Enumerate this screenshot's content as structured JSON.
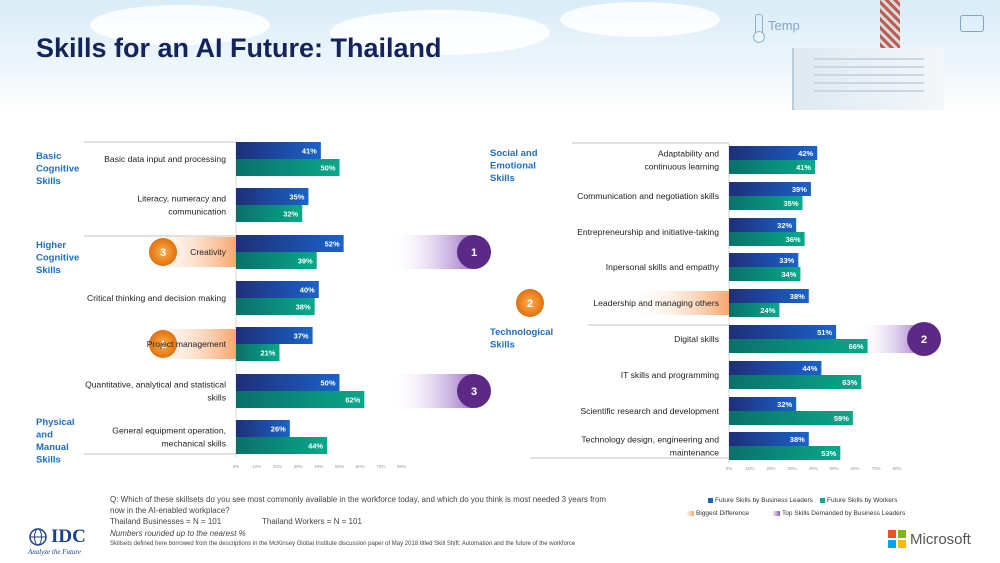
{
  "header": {
    "title": "Skills for an AI Future: Thailand",
    "temp_label": "Temp"
  },
  "colors": {
    "leaders": "#1a63c9",
    "workers": "#0aa88a",
    "biggest_difference": "#f7a66c",
    "top_demanded": "#5c2a86",
    "category_text": "#1e6ec0"
  },
  "chart_data": {
    "type": "bar",
    "series_names": [
      "Future Skills by Business Leaders",
      "Future Skills by Workers"
    ],
    "xlim": [
      0,
      80
    ],
    "x_ticks": [
      "0%",
      "10%",
      "20%",
      "30%",
      "40%",
      "50%",
      "60%",
      "70%",
      "80%"
    ],
    "panels": [
      {
        "groups": [
          {
            "category": "Basic Cognitive Skills",
            "items": [
              {
                "skill": "Basic data input and processing",
                "leaders": 41,
                "workers": 50
              },
              {
                "skill": "Literacy, numeracy and communication",
                "leaders": 35,
                "workers": 32
              }
            ]
          },
          {
            "category": "Higher Cognitive Skills",
            "items": [
              {
                "skill": "Creativity",
                "leaders": 52,
                "workers": 39,
                "biggest_difference_rank": "3",
                "top_demanded_rank": "1"
              },
              {
                "skill": "Critical thinking and decision making",
                "leaders": 40,
                "workers": 38
              },
              {
                "skill": "Project management",
                "leaders": 37,
                "workers": 21,
                "biggest_difference_rank": "1"
              },
              {
                "skill": "Quantitative, analytical and statistical skills",
                "leaders": 50,
                "workers": 62,
                "top_demanded_rank": "3"
              }
            ]
          },
          {
            "category": "Physical and Manual Skills",
            "items": [
              {
                "skill": "General equipment operation, mechanical skills",
                "leaders": 26,
                "workers": 44
              }
            ]
          }
        ]
      },
      {
        "groups": [
          {
            "category": "Social and Emotional Skills",
            "items": [
              {
                "skill": "Adaptability and continuous learning",
                "leaders": 42,
                "workers": 41
              },
              {
                "skill": "Communication and negotiation skills",
                "leaders": 39,
                "workers": 35
              },
              {
                "skill": "Entrepreneurship and initiative-taking",
                "leaders": 32,
                "workers": 36
              },
              {
                "skill": "Interpersonal skills and empathy",
                "leaders": 33,
                "workers": 34
              },
              {
                "skill": "Leadership and managing others",
                "leaders": 38,
                "workers": 24,
                "biggest_difference_rank": "2"
              }
            ]
          },
          {
            "category": "Technological Skills",
            "items": [
              {
                "skill": "Digital skills",
                "leaders": 51,
                "workers": 66,
                "top_demanded_rank": "2"
              },
              {
                "skill": "IT skills and programming",
                "leaders": 44,
                "workers": 63
              },
              {
                "skill": "Scientific research and development",
                "leaders": 32,
                "workers": 59
              },
              {
                "skill": "Technology design, engineering and maintenance",
                "leaders": 38,
                "workers": 53
              }
            ]
          }
        ]
      }
    ],
    "legend": [
      {
        "label": "Future Skills by Business Leaders",
        "color": "#1a63c9"
      },
      {
        "label": "Future Skills by Workers",
        "color": "#0aa88a"
      },
      {
        "label": "Biggest Difference",
        "color": "#f7a66c"
      },
      {
        "label": "Top Skills Demanded by Business Leaders",
        "color": "#5c2a86"
      }
    ],
    "legend_position": "bottom-right"
  },
  "display": {
    "left_categories": [
      "Basic\nCognitive\nSkills",
      "Higher\nCognitive\nSkills",
      "Physical\nand\nManual\nSkills"
    ],
    "right_categories": [
      "Social and\nEmotional\nSkills",
      "Technological\nSkills"
    ],
    "left_skill_lines": [
      [
        "Basic data input and processing"
      ],
      [
        "Literacy, numeracy and",
        "communication"
      ],
      [
        "Creativity"
      ],
      [
        "Critical thinking and decision making"
      ],
      [
        "Project management"
      ],
      [
        "Quantitative, analytical and statistical",
        "skills"
      ],
      [
        "General equipment operation,",
        "mechanical skills"
      ]
    ],
    "right_skill_lines": [
      [
        "Adaptability and",
        "continuous learning"
      ],
      [
        "Communication and negotiation skills"
      ],
      [
        "Entrepreneurship and initiative-taking"
      ],
      [
        "Inpersonal skills and empathy"
      ],
      [
        "Leadership and managing others"
      ],
      [
        "Digital skills"
      ],
      [
        "IT skills and programming"
      ],
      [
        "Scientific research and development"
      ],
      [
        "Technology design, engineering and",
        "maintenance"
      ]
    ]
  },
  "footnote": {
    "question": "Q: Which of these skillsets do you see most commonly available in the workforce today, and which do you think is most needed 3 years from",
    "question_line2": "now in the AI-enabled workplace?",
    "businesses": "Thailand Businesses = N = 101",
    "workers": "Thailand Workers = N = 101",
    "rounding": "Numbers rounded up to the nearest %",
    "source": "Skillsets defined here borrowed from the descriptions in the McKinsey Global Institute discussion paper of May 2018 titled Skill Shift: Automation and the future of the workforce"
  },
  "brand": {
    "idc": "IDC",
    "idc_tagline": "Analyze the Future",
    "microsoft": "Microsoft"
  }
}
